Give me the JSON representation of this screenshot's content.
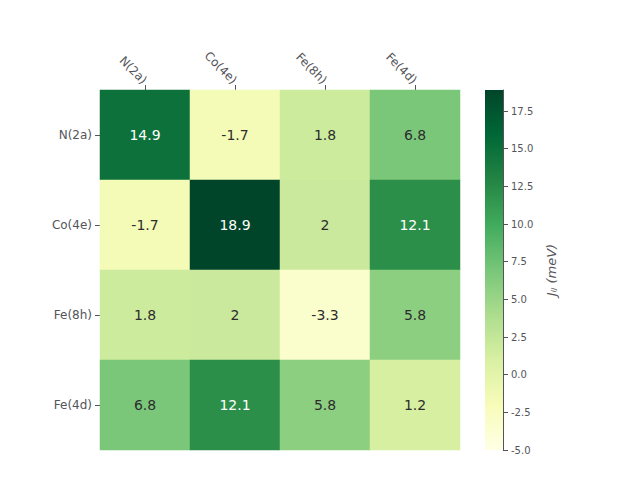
{
  "chart_data": {
    "type": "heatmap",
    "categories": [
      "N(2a)",
      "Co(4e)",
      "Fe(8h)",
      "Fe(4d)"
    ],
    "matrix": [
      [
        14.9,
        -1.7,
        1.8,
        6.8
      ],
      [
        -1.7,
        18.9,
        2.0,
        12.1
      ],
      [
        1.8,
        2.0,
        -3.3,
        5.8
      ],
      [
        6.8,
        12.1,
        5.8,
        1.2
      ]
    ],
    "data_labels": true,
    "colorbar_label": "Jᵢⱼ (meV)",
    "colorbar_range": [
      -5.0,
      18.9
    ],
    "colorbar_ticks": [
      {
        "value": -5,
        "label": "-5.0"
      },
      -2.5,
      {
        "value": 0,
        "label": "0.0"
      },
      2.5,
      {
        "value": 5,
        "label": "5.0"
      },
      7.5,
      {
        "value": 10,
        "label": "10.0"
      },
      12.5,
      {
        "value": 15,
        "label": "15.0"
      },
      17.5
    ]
  }
}
